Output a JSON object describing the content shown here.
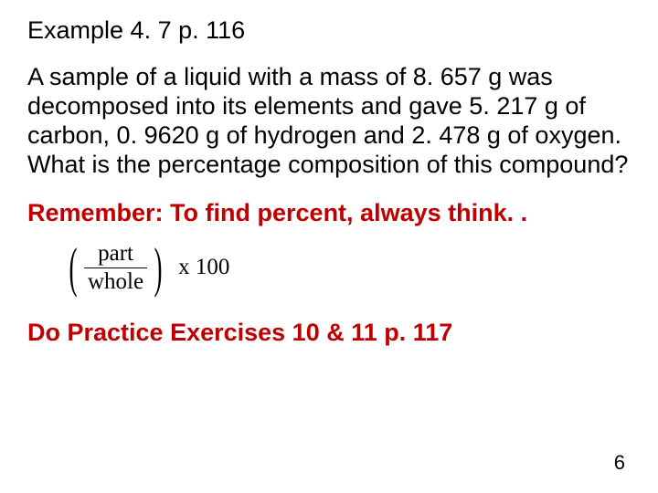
{
  "title": "Example 4. 7 p. 116",
  "body": "A sample of a liquid with a mass of 8. 657 g was decomposed into its elements and gave 5. 217 g of carbon, 0. 9620 g of hydrogen and 2. 478 g of oxygen.  What is the percentage composition of this compound?",
  "remember": "Remember: To find percent, always think. .",
  "formula": {
    "numerator": "part",
    "denominator": "whole",
    "suffix": "x 100"
  },
  "practice": "Do Practice Exercises 10 & 11 p. 117",
  "page_number": "6",
  "colors": {
    "text": "#000000",
    "accent": "#c00000",
    "background": "#ffffff"
  },
  "fonts": {
    "body_family": "Arial",
    "formula_family": "Times New Roman",
    "title_size": 27,
    "body_size": 27,
    "formula_size": 25,
    "pagenum_size": 22
  }
}
